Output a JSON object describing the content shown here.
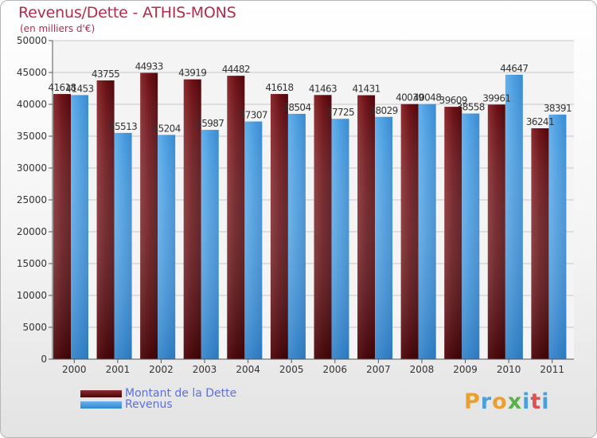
{
  "title": "Revenus/Dette - ATHIS-MONS",
  "subtitle": "(en milliers d'€)",
  "colors": {
    "dette": "#6b1015",
    "revenus": "#4a9de0",
    "title": "#b02d4b",
    "legend_text": "#5b6ee6"
  },
  "legend": [
    {
      "label": "Montant de la Dette",
      "color": "#6b1015"
    },
    {
      "label": "Revenus",
      "color": "#4a9de0"
    }
  ],
  "logo": {
    "text": "Proxiti",
    "letters": [
      "P",
      "r",
      "o",
      "x",
      "i",
      "t",
      "i"
    ],
    "colors": [
      "#e8a030",
      "#4aa0d8",
      "#e8a030",
      "#5ab04a",
      "#4aa0d8",
      "#e05050",
      "#4aa0d8"
    ]
  },
  "chart_data": {
    "type": "bar",
    "categories": [
      "2000",
      "2001",
      "2002",
      "2003",
      "2004",
      "2005",
      "2006",
      "2007",
      "2008",
      "2009",
      "2010",
      "2011"
    ],
    "series": [
      {
        "name": "Montant de la Dette",
        "values": [
          41618,
          43755,
          44933,
          43919,
          44482,
          41618,
          41463,
          41431,
          40039,
          39609,
          39961,
          36241
        ],
        "labels": [
          "41618",
          "43755",
          "44933",
          "43919",
          "44482",
          "41618",
          "41463",
          "41431",
          "40039",
          "39609",
          "39961",
          "36241"
        ]
      },
      {
        "name": "Revenus",
        "values": [
          41453,
          35513,
          35204,
          35987,
          37307,
          38504,
          37725,
          38029,
          40048,
          38558,
          44647,
          38391
        ],
        "labels": [
          "41453",
          "35513",
          "35204",
          "35987",
          "37307",
          "38504",
          "37725",
          "38029",
          "40048",
          "38558",
          "44647",
          "38391"
        ]
      }
    ],
    "yticks": [
      "0",
      "5000",
      "10000",
      "15000",
      "20000",
      "25000",
      "30000",
      "35000",
      "40000",
      "45000",
      "50000"
    ],
    "ylim": [
      0,
      50000
    ],
    "grid": true,
    "legend_position": "bottom-left"
  }
}
